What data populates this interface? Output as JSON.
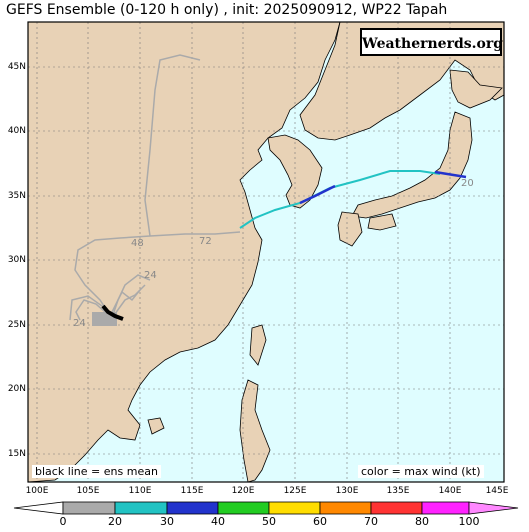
{
  "title": "GEFS Ensemble (0-120 h only) , init: 2025090912, WP22 Tapah",
  "brand": "Weathernerds.org",
  "notes": {
    "left": "black line = ens mean",
    "right": "color = max wind (kt)"
  },
  "lat_labels": [
    "45N",
    "40N",
    "35N",
    "30N",
    "25N",
    "20N",
    "15N"
  ],
  "lon_labels": [
    "100E",
    "105E",
    "110E",
    "115E",
    "120E",
    "125E",
    "130E",
    "135E",
    "140E",
    "145E"
  ],
  "track_labels": [
    "48",
    "72",
    "24",
    "24",
    "20"
  ],
  "colorbar": {
    "ticks": [
      "0",
      "20",
      "30",
      "40",
      "50",
      "60",
      "70",
      "80",
      "100"
    ],
    "colors": [
      "#ffffff",
      "#aaaaaa",
      "#22c3c3",
      "#2233cc",
      "#22cc22",
      "#ffdd00",
      "#ff8800",
      "#ff3333",
      "#ff22ff",
      "#ff88ff"
    ]
  },
  "colors": {
    "ocean": "#dffdff",
    "land": "#e8d2b6"
  }
}
